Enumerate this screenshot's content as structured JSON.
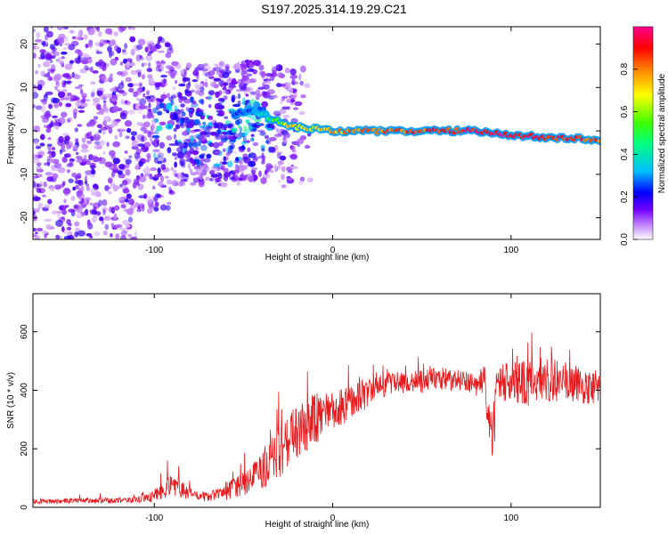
{
  "figure": {
    "title": "S197.2025.314.19.29.C21"
  },
  "chart_data": [
    {
      "type": "heatmap",
      "name": "spectrogram",
      "title": "S197.2025.314.19.29.C21",
      "xlabel": "Height of straight line (km)",
      "ylabel": "Frequency (Hz)",
      "xlim": [
        -168,
        150
      ],
      "ylim": [
        -25,
        24
      ],
      "xticks": [
        -100,
        0,
        100
      ],
      "yticks": [
        -20,
        -10,
        0,
        10,
        20
      ],
      "colorbar": {
        "label": "Normalized spectral amplitude",
        "ticks": [
          0.0,
          0.2,
          0.4,
          0.6,
          0.8
        ],
        "tick_labels": [
          "0.0",
          "0.2",
          "0.4",
          "0.6",
          "0.8"
        ],
        "range": [
          0,
          1
        ],
        "colors": [
          "#ffffff",
          "#c080ff",
          "#7000ff",
          "#0000ff",
          "#00c0ff",
          "#00ff80",
          "#40ff00",
          "#ffff00",
          "#ff8000",
          "#ff0000",
          "#ff0090"
        ]
      },
      "ridge": {
        "x": [
          -60,
          -45,
          -35,
          -25,
          -10,
          0,
          20,
          50,
          80,
          100,
          120,
          150
        ],
        "frequency": [
          3,
          5,
          3,
          1,
          0.5,
          0,
          0,
          0,
          0,
          -1,
          -1.5,
          -2
        ],
        "amplitude": [
          0.3,
          0.35,
          0.5,
          0.7,
          0.7,
          0.75,
          0.8,
          0.85,
          0.9,
          0.95,
          0.9,
          0.85
        ]
      },
      "noise_cutoff_x": -40
    },
    {
      "type": "line",
      "name": "snr",
      "xlabel": "Height of straight line (km)",
      "ylabel": "SNR (10 * v/v)",
      "xlim": [
        -168,
        150
      ],
      "ylim": [
        0,
        730
      ],
      "xticks": [
        -100,
        0,
        100
      ],
      "yticks": [
        0,
        200,
        400,
        600
      ],
      "line_color": "#e8191c",
      "envelope": {
        "x": [
          -168,
          -110,
          -100,
          -90,
          -80,
          -70,
          -60,
          -50,
          -40,
          -30,
          -20,
          -10,
          0,
          10,
          20,
          30,
          40,
          50,
          60,
          70,
          80,
          85,
          88,
          90,
          92,
          95,
          100,
          110,
          120,
          130,
          140,
          150
        ],
        "baseline": [
          20,
          25,
          40,
          80,
          45,
          35,
          55,
          80,
          120,
          190,
          250,
          300,
          330,
          360,
          390,
          420,
          430,
          430,
          440,
          430,
          420,
          430,
          300,
          250,
          400,
          420,
          430,
          420,
          440,
          430,
          410,
          410
        ],
        "variability": [
          8,
          10,
          20,
          40,
          20,
          15,
          30,
          40,
          60,
          90,
          100,
          90,
          70,
          60,
          50,
          40,
          40,
          40,
          40,
          40,
          40,
          60,
          80,
          100,
          80,
          70,
          70,
          80,
          80,
          70,
          60,
          60
        ]
      }
    }
  ]
}
